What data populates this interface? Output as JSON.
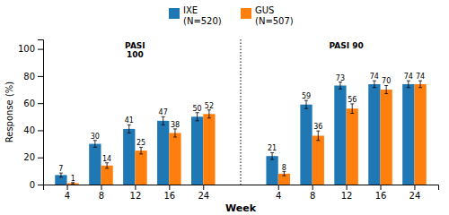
{
  "chart_data": {
    "type": "bar",
    "xlabel": "Week",
    "ylabel": "Response (%)",
    "categories": [
      "4",
      "8",
      "12",
      "16",
      "24",
      "4",
      "8",
      "12",
      "16",
      "24"
    ],
    "series": [
      {
        "name": "IXE\n(N=520)",
        "values": [
          7,
          30,
          41,
          47,
          50,
          21,
          59,
          73,
          74,
          74
        ],
        "error": [
          1.5,
          2.5,
          3.0,
          3.0,
          3.0,
          2.5,
          3.0,
          2.5,
          2.5,
          2.5
        ]
      },
      {
        "name": "GUS\n(N=507)",
        "values": [
          1,
          14,
          25,
          38,
          52,
          8,
          36,
          56,
          70,
          74
        ],
        "error": [
          0.5,
          2.0,
          2.5,
          3.0,
          3.0,
          1.5,
          3.5,
          3.5,
          3.0,
          2.5
        ]
      }
    ],
    "ylim": [
      0,
      107
    ],
    "yticks": [
      0,
      20,
      40,
      60,
      80,
      100
    ],
    "data_labels": true,
    "legend": "top",
    "grid": false,
    "annotations": [
      "PASI\n100",
      "PASI 90"
    ]
  }
}
